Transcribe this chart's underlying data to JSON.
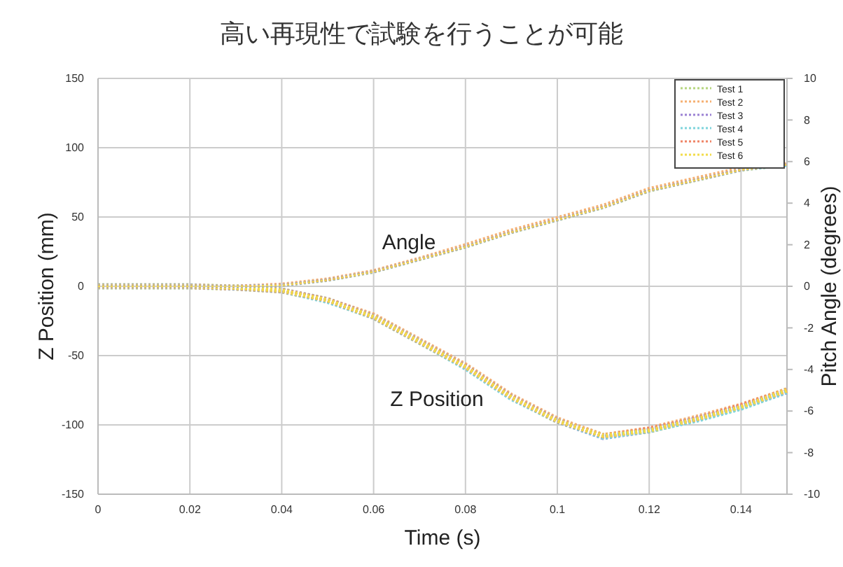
{
  "chart_data": {
    "type": "line",
    "title": "高い再現性で試験を行うことが可能",
    "xlabel": "Time (s)",
    "ylabel": "Z Position (mm)",
    "y2label": "Pitch Angle (degrees)",
    "x": [
      0,
      0.01,
      0.02,
      0.03,
      0.04,
      0.05,
      0.06,
      0.07,
      0.08,
      0.09,
      0.1,
      0.11,
      0.12,
      0.13,
      0.14,
      0.15
    ],
    "xlim": [
      0,
      0.15
    ],
    "xticks": [
      0,
      0.02,
      0.04,
      0.06,
      0.08,
      0.1,
      0.12,
      0.14
    ],
    "ylim": [
      -150,
      150
    ],
    "yticks": [
      -150,
      -100,
      -50,
      0,
      50,
      100,
      150
    ],
    "y2lim": [
      -10,
      10
    ],
    "y2ticks": [
      -10,
      -8,
      -6,
      -4,
      -2,
      0,
      2,
      4,
      6,
      8,
      10
    ],
    "grid": true,
    "legend": "top right",
    "line_style": "dotted",
    "marker": "none",
    "annotations": [
      "Angle",
      "Z Position"
    ],
    "series": [
      {
        "name": "Test 1",
        "color": "#b5d67e",
        "values": [
          0,
          0,
          0,
          -1,
          -3,
          -10,
          -22,
          -40,
          -58,
          -80,
          -97,
          -108,
          -104,
          -96,
          -87,
          -75
        ]
      },
      {
        "name": "Test 2",
        "color": "#f5b072",
        "values": [
          0,
          0,
          0,
          -1,
          -3,
          -10,
          -21,
          -39,
          -57,
          -79,
          -96,
          -108,
          -103,
          -95,
          -86,
          -75
        ]
      },
      {
        "name": "Test 3",
        "color": "#9b82d4",
        "values": [
          0,
          0,
          0,
          -1,
          -3,
          -10,
          -22,
          -40,
          -58,
          -80,
          -97,
          -109,
          -104,
          -96,
          -87,
          -76
        ]
      },
      {
        "name": "Test 4",
        "color": "#7fd4dc",
        "values": [
          0,
          0,
          0,
          -1,
          -3,
          -11,
          -22,
          -40,
          -59,
          -81,
          -97,
          -109,
          -104,
          -97,
          -88,
          -76
        ]
      },
      {
        "name": "Test 5",
        "color": "#ef8466",
        "values": [
          0,
          0,
          0,
          -1,
          -3,
          -10,
          -22,
          -40,
          -58,
          -80,
          -97,
          -108,
          -103,
          -96,
          -86,
          -75
        ]
      },
      {
        "name": "Test 6",
        "color": "#f2dc4a",
        "values": [
          0,
          0,
          0,
          -1,
          -3,
          -10,
          -22,
          -40,
          -58,
          -80,
          -97,
          -108,
          -104,
          -96,
          -87,
          -75
        ]
      },
      {
        "color": "#b5d67e",
        "axis": "y2",
        "values": [
          0,
          0,
          0,
          0,
          0.05,
          0.3,
          0.7,
          1.3,
          1.9,
          2.6,
          3.2,
          3.8,
          4.6,
          5.1,
          5.6,
          5.85
        ]
      },
      {
        "color": "#f5b072",
        "axis": "y2",
        "values": [
          0,
          0,
          0,
          0,
          0.1,
          0.35,
          0.75,
          1.35,
          2,
          2.7,
          3.3,
          3.9,
          4.7,
          5.2,
          5.7,
          5.9
        ]
      },
      {
        "color": "#9b82d4",
        "axis": "y2",
        "values": [
          0,
          0,
          0,
          0,
          0.05,
          0.3,
          0.7,
          1.3,
          1.9,
          2.6,
          3.2,
          3.8,
          4.6,
          5.1,
          5.6,
          5.85
        ]
      },
      {
        "color": "#7fd4dc",
        "axis": "y2",
        "values": [
          0,
          0,
          0,
          0,
          0.05,
          0.3,
          0.7,
          1.3,
          1.9,
          2.6,
          3.2,
          3.8,
          4.6,
          5.1,
          5.6,
          5.8
        ]
      },
      {
        "color": "#ef8466",
        "axis": "y2",
        "values": [
          0,
          0,
          0,
          0,
          0.05,
          0.3,
          0.7,
          1.3,
          1.9,
          2.6,
          3.2,
          3.8,
          4.6,
          5.1,
          5.6,
          5.85
        ]
      },
      {
        "color": "#f2dc4a",
        "axis": "y2",
        "values": [
          0,
          0,
          0,
          0,
          0.05,
          0.3,
          0.7,
          1.3,
          1.9,
          2.6,
          3.2,
          3.8,
          4.6,
          5.1,
          5.6,
          5.85
        ]
      }
    ]
  }
}
